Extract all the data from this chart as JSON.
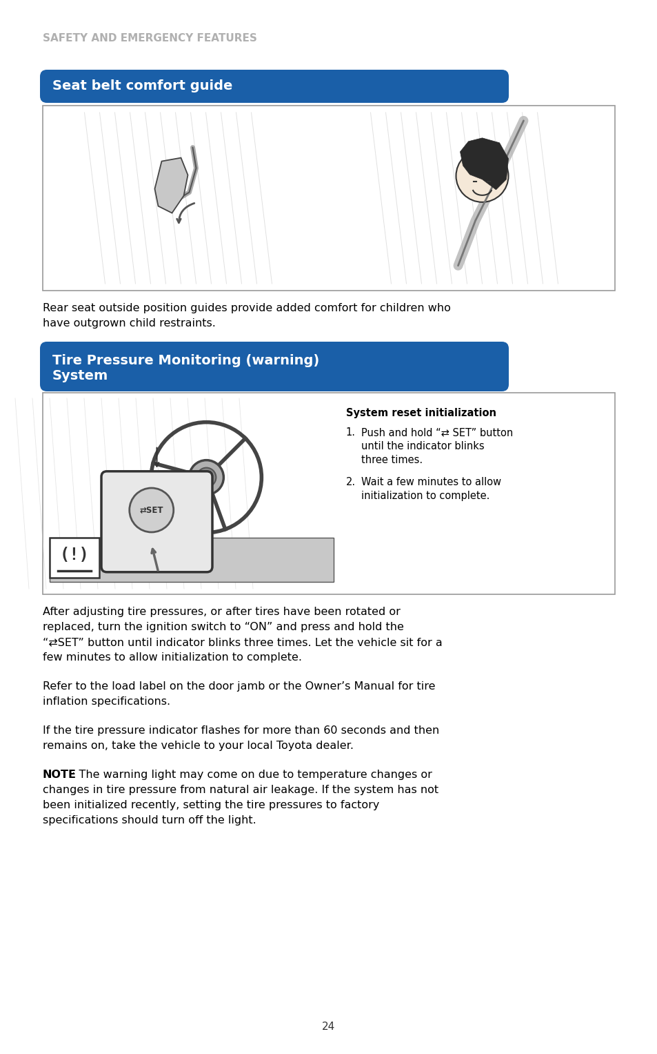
{
  "page_bg": "#ffffff",
  "header_text": "SAFETY AND EMERGENCY FEATURES",
  "header_color": "#b0b0b0",
  "section1_title": "Seat belt comfort guide",
  "section1_title_bg": "#1a5fa8",
  "section1_title_color": "#ffffff",
  "section2_title_line1": "Tire Pressure Monitoring (warning)",
  "section2_title_line2": "System",
  "section2_title_bg": "#1a5fa8",
  "section2_title_color": "#ffffff",
  "body_text_color": "#000000",
  "caption1_line1": "Rear seat outside position guides provide added comfort for children who",
  "caption1_line2": "have outgrown child restraints.",
  "tpms_body1_line1": "After adjusting tire pressures, or after tires have been rotated or",
  "tpms_body1_line2": "replaced, turn the ignition switch to “ON” and press and hold the",
  "tpms_body1_line3": "“⇄SET” button until indicator blinks three times. Let the vehicle sit for a",
  "tpms_body1_line4": "few minutes to allow initialization to complete.",
  "tpms_body2_line1": "Refer to the load label on the door jamb or the Owner’s Manual for tire",
  "tpms_body2_line2": "inflation specifications.",
  "tpms_body3_line1": "If the tire pressure indicator flashes for more than 60 seconds and then",
  "tpms_body3_line2": "remains on, take the vehicle to your local Toyota dealer.",
  "note_label": "NOTE",
  "note_text_line1": ": The warning light may come on due to temperature changes or",
  "note_text_line2": "changes in tire pressure from natural air leakage. If the system has not",
  "note_text_line3": "been initialized recently, setting the tire pressures to factory",
  "note_text_line4": "specifications should turn off the light.",
  "system_reset_title": "System reset initialization",
  "step1_label": "1.",
  "step1_line1": "Push and hold “⇄ SET” button",
  "step1_line2": "until the indicator blinks",
  "step1_line3": "three times.",
  "step2_label": "2.",
  "step2_line1": "Wait a few minutes to allow",
  "step2_line2": "initialization to complete.",
  "page_number": "24",
  "box_border_color": "#999999",
  "font_size_body": 11.5,
  "font_size_header": 11,
  "font_size_section": 14,
  "font_size_reset": 10.5,
  "font_size_step": 10.5,
  "font_size_page": 11
}
